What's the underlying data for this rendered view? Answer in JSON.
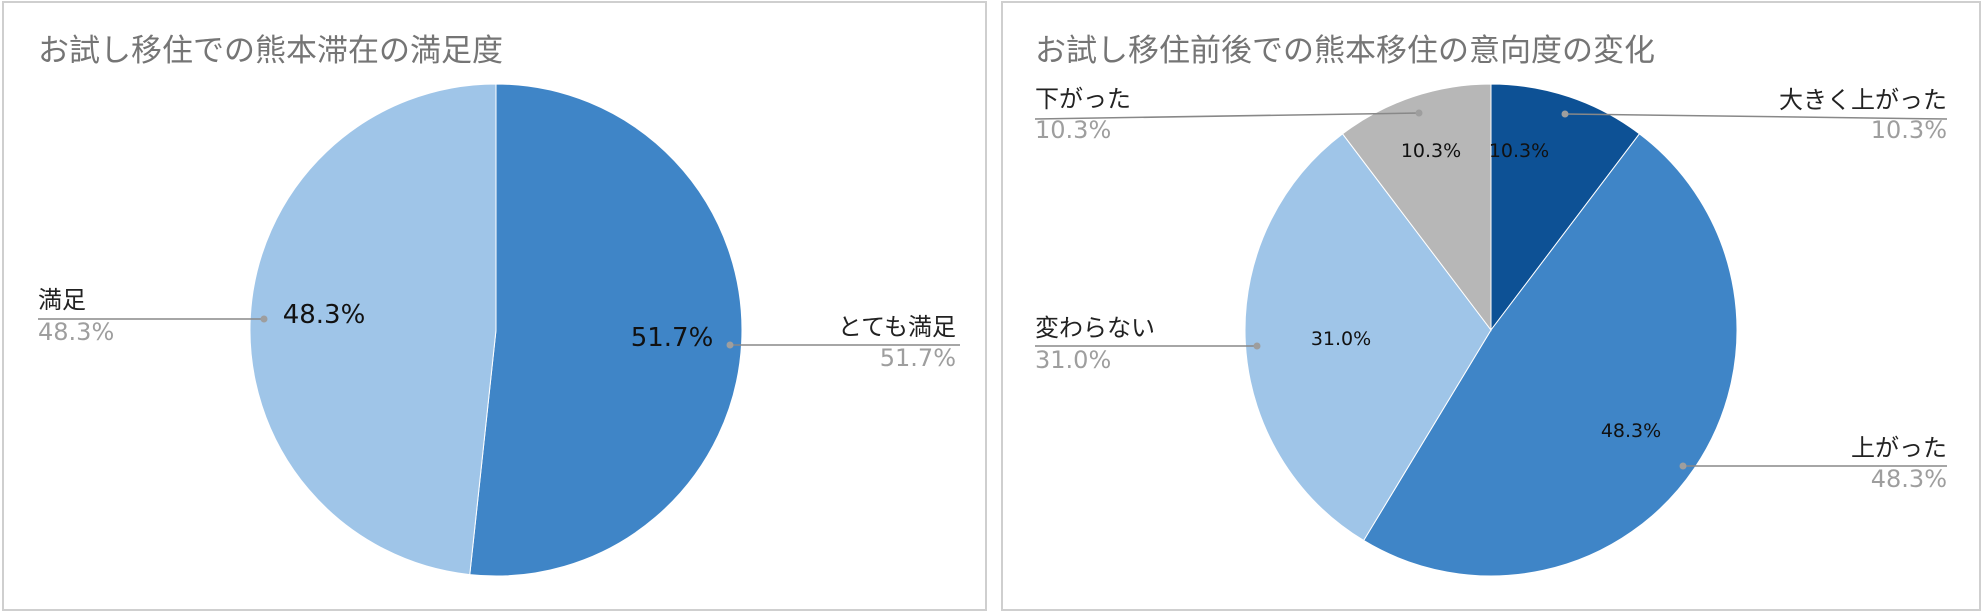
{
  "colors": {
    "dark_blue": "#0d5195",
    "mid_blue": "#3f85c7",
    "light_blue": "#9fc5e8",
    "gray": "#b7b7b7",
    "leader": "#888888"
  },
  "chart_data": [
    {
      "type": "pie",
      "title": "お試し移住での熊本滞在の満足度",
      "slices": [
        {
          "label": "とても満足",
          "value": 51.7,
          "value_text": "51.7%",
          "color": "#3f85c7"
        },
        {
          "label": "満足",
          "value": 48.3,
          "value_text": "48.3%",
          "color": "#9fc5e8"
        }
      ],
      "start_angle": "12 o'clock",
      "direction": "clockwise",
      "legend": "none"
    },
    {
      "type": "pie",
      "title": "お試し移住前後での熊本移住の意向度の変化",
      "slices": [
        {
          "label": "大きく上がった",
          "value": 10.3,
          "value_text": "10.3%",
          "color": "#0d5195"
        },
        {
          "label": "上がった",
          "value": 48.3,
          "value_text": "48.3%",
          "color": "#3f85c7"
        },
        {
          "label": "変わらない",
          "value": 31.0,
          "value_text": "31.0%",
          "color": "#9fc5e8"
        },
        {
          "label": "下がった",
          "value": 10.3,
          "value_text": "10.3%",
          "color": "#b7b7b7"
        }
      ],
      "start_angle": "12 o'clock",
      "direction": "clockwise",
      "legend": "none"
    }
  ]
}
